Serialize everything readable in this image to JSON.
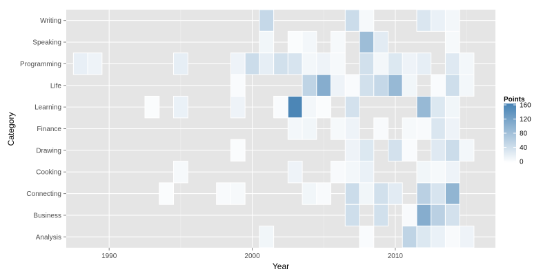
{
  "chart_data": {
    "type": "heatmap",
    "title": "",
    "xlabel": "Year",
    "ylabel": "Category",
    "x_ticks": [
      1990,
      2000,
      2010
    ],
    "xlim": [
      1987,
      2017
    ],
    "categories": [
      "Analysis",
      "Business",
      "Connecting",
      "Cooking",
      "Drawing",
      "Finance",
      "Learning",
      "Life",
      "Programming",
      "Speaking",
      "Writing"
    ],
    "legend": {
      "title": "Points",
      "ticks": [
        0,
        40,
        80,
        120,
        160
      ],
      "min": 0,
      "max": 160,
      "low_color": "#FFFFFF",
      "high_color": "#4682B4"
    },
    "grid": true,
    "cells": [
      {
        "category": "Writing",
        "year": 2001,
        "value": 50
      },
      {
        "category": "Writing",
        "year": 2007,
        "value": 45
      },
      {
        "category": "Writing",
        "year": 2008,
        "value": 8
      },
      {
        "category": "Writing",
        "year": 2012,
        "value": 32
      },
      {
        "category": "Writing",
        "year": 2013,
        "value": 18
      },
      {
        "category": "Writing",
        "year": 2014,
        "value": 10
      },
      {
        "category": "Speaking",
        "year": 2001,
        "value": 12
      },
      {
        "category": "Speaking",
        "year": 2003,
        "value": 4
      },
      {
        "category": "Speaking",
        "year": 2004,
        "value": 10
      },
      {
        "category": "Speaking",
        "year": 2006,
        "value": 8
      },
      {
        "category": "Speaking",
        "year": 2008,
        "value": 85
      },
      {
        "category": "Speaking",
        "year": 2009,
        "value": 25
      },
      {
        "category": "Speaking",
        "year": 2014,
        "value": 8
      },
      {
        "category": "Programming",
        "year": 1988,
        "value": 20
      },
      {
        "category": "Programming",
        "year": 1989,
        "value": 15
      },
      {
        "category": "Programming",
        "year": 1995,
        "value": 22
      },
      {
        "category": "Programming",
        "year": 1999,
        "value": 15
      },
      {
        "category": "Programming",
        "year": 2000,
        "value": 45
      },
      {
        "category": "Programming",
        "year": 2001,
        "value": 22
      },
      {
        "category": "Programming",
        "year": 2002,
        "value": 40
      },
      {
        "category": "Programming",
        "year": 2003,
        "value": 35
      },
      {
        "category": "Programming",
        "year": 2004,
        "value": 10
      },
      {
        "category": "Programming",
        "year": 2005,
        "value": 15
      },
      {
        "category": "Programming",
        "year": 2006,
        "value": 8
      },
      {
        "category": "Programming",
        "year": 2008,
        "value": 40
      },
      {
        "category": "Programming",
        "year": 2009,
        "value": 10
      },
      {
        "category": "Programming",
        "year": 2010,
        "value": 30
      },
      {
        "category": "Programming",
        "year": 2011,
        "value": 15
      },
      {
        "category": "Programming",
        "year": 2012,
        "value": 22
      },
      {
        "category": "Programming",
        "year": 2014,
        "value": 28
      },
      {
        "category": "Programming",
        "year": 2015,
        "value": 10
      },
      {
        "category": "Life",
        "year": 1999,
        "value": 5
      },
      {
        "category": "Life",
        "year": 2004,
        "value": 55
      },
      {
        "category": "Life",
        "year": 2005,
        "value": 105
      },
      {
        "category": "Life",
        "year": 2006,
        "value": 15
      },
      {
        "category": "Life",
        "year": 2007,
        "value": 5
      },
      {
        "category": "Life",
        "year": 2008,
        "value": 40
      },
      {
        "category": "Life",
        "year": 2009,
        "value": 50
      },
      {
        "category": "Life",
        "year": 2010,
        "value": 90
      },
      {
        "category": "Life",
        "year": 2011,
        "value": 12
      },
      {
        "category": "Life",
        "year": 2013,
        "value": 5
      },
      {
        "category": "Life",
        "year": 2014,
        "value": 42
      },
      {
        "category": "Life",
        "year": 2015,
        "value": 10
      },
      {
        "category": "Learning",
        "year": 1993,
        "value": 4
      },
      {
        "category": "Learning",
        "year": 1995,
        "value": 18
      },
      {
        "category": "Learning",
        "year": 1999,
        "value": 15
      },
      {
        "category": "Learning",
        "year": 2002,
        "value": 5
      },
      {
        "category": "Learning",
        "year": 2003,
        "value": 155
      },
      {
        "category": "Learning",
        "year": 2004,
        "value": 10
      },
      {
        "category": "Learning",
        "year": 2005,
        "value": 4
      },
      {
        "category": "Learning",
        "year": 2007,
        "value": 38
      },
      {
        "category": "Learning",
        "year": 2012,
        "value": 90
      },
      {
        "category": "Learning",
        "year": 2013,
        "value": 30
      },
      {
        "category": "Learning",
        "year": 2014,
        "value": 12
      },
      {
        "category": "Finance",
        "year": 2003,
        "value": 10
      },
      {
        "category": "Finance",
        "year": 2004,
        "value": 12
      },
      {
        "category": "Finance",
        "year": 2006,
        "value": 8
      },
      {
        "category": "Finance",
        "year": 2007,
        "value": 15
      },
      {
        "category": "Finance",
        "year": 2009,
        "value": 6
      },
      {
        "category": "Finance",
        "year": 2011,
        "value": 8
      },
      {
        "category": "Finance",
        "year": 2012,
        "value": 6
      },
      {
        "category": "Finance",
        "year": 2013,
        "value": 32
      },
      {
        "category": "Finance",
        "year": 2014,
        "value": 15
      },
      {
        "category": "Drawing",
        "year": 1999,
        "value": 4
      },
      {
        "category": "Drawing",
        "year": 2007,
        "value": 15
      },
      {
        "category": "Drawing",
        "year": 2008,
        "value": 30
      },
      {
        "category": "Drawing",
        "year": 2010,
        "value": 38
      },
      {
        "category": "Drawing",
        "year": 2011,
        "value": 5
      },
      {
        "category": "Drawing",
        "year": 2013,
        "value": 28
      },
      {
        "category": "Drawing",
        "year": 2014,
        "value": 45
      },
      {
        "category": "Drawing",
        "year": 2015,
        "value": 10
      },
      {
        "category": "Cooking",
        "year": 1995,
        "value": 8
      },
      {
        "category": "Cooking",
        "year": 2003,
        "value": 15
      },
      {
        "category": "Cooking",
        "year": 2006,
        "value": 6
      },
      {
        "category": "Cooking",
        "year": 2007,
        "value": 10
      },
      {
        "category": "Cooking",
        "year": 2008,
        "value": 18
      },
      {
        "category": "Cooking",
        "year": 2012,
        "value": 12
      },
      {
        "category": "Cooking",
        "year": 2013,
        "value": 8
      },
      {
        "category": "Cooking",
        "year": 2014,
        "value": 15
      },
      {
        "category": "Connecting",
        "year": 1994,
        "value": 4
      },
      {
        "category": "Connecting",
        "year": 1998,
        "value": 6
      },
      {
        "category": "Connecting",
        "year": 1999,
        "value": 8
      },
      {
        "category": "Connecting",
        "year": 2004,
        "value": 12
      },
      {
        "category": "Connecting",
        "year": 2005,
        "value": 6
      },
      {
        "category": "Connecting",
        "year": 2007,
        "value": 45
      },
      {
        "category": "Connecting",
        "year": 2008,
        "value": 12
      },
      {
        "category": "Connecting",
        "year": 2009,
        "value": 40
      },
      {
        "category": "Connecting",
        "year": 2010,
        "value": 25
      },
      {
        "category": "Connecting",
        "year": 2012,
        "value": 60
      },
      {
        "category": "Connecting",
        "year": 2013,
        "value": 35
      },
      {
        "category": "Connecting",
        "year": 2014,
        "value": 95
      },
      {
        "category": "Business",
        "year": 2007,
        "value": 42
      },
      {
        "category": "Business",
        "year": 2009,
        "value": 40
      },
      {
        "category": "Business",
        "year": 2011,
        "value": 6
      },
      {
        "category": "Business",
        "year": 2012,
        "value": 105
      },
      {
        "category": "Business",
        "year": 2013,
        "value": 60
      },
      {
        "category": "Business",
        "year": 2014,
        "value": 38
      },
      {
        "category": "Analysis",
        "year": 2001,
        "value": 12
      },
      {
        "category": "Analysis",
        "year": 2008,
        "value": 5
      },
      {
        "category": "Analysis",
        "year": 2011,
        "value": 55
      },
      {
        "category": "Analysis",
        "year": 2012,
        "value": 30
      },
      {
        "category": "Analysis",
        "year": 2013,
        "value": 18
      },
      {
        "category": "Analysis",
        "year": 2014,
        "value": 6
      },
      {
        "category": "Analysis",
        "year": 2015,
        "value": 15
      }
    ]
  }
}
